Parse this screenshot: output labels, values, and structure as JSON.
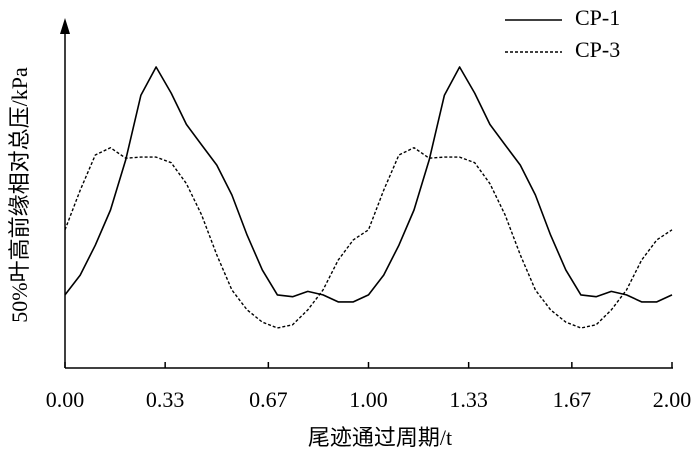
{
  "chart_data": {
    "type": "line",
    "y_label": "50%叶高前缘相对总压/kPa",
    "x_label": "尾迹通过周期/t",
    "x": [
      0,
      0.05,
      0.1,
      0.15,
      0.2,
      0.25,
      0.3,
      0.35,
      0.4,
      0.45,
      0.5,
      0.55,
      0.6,
      0.65,
      0.7,
      0.75,
      0.8,
      0.85,
      0.9,
      0.95,
      1.0,
      1.05,
      1.1,
      1.15,
      1.2,
      1.25,
      1.3,
      1.35,
      1.4,
      1.45,
      1.5,
      1.55,
      1.6,
      1.65,
      1.7,
      1.75,
      1.8,
      1.85,
      1.9,
      1.95,
      2.0
    ],
    "series": [
      {
        "name": "CP-1",
        "color": "#000000",
        "dash": "solid",
        "values": [
          21.0,
          26.7,
          35.3,
          45.4,
          59.8,
          78.4,
          86.5,
          79.0,
          70.0,
          64.1,
          58.3,
          49.7,
          38.2,
          28.2,
          21.0,
          20.5,
          22.0,
          21.0,
          19.0,
          19.0,
          21.0,
          26.7,
          35.3,
          45.4,
          59.8,
          78.4,
          86.5,
          79.0,
          70.0,
          64.1,
          58.3,
          49.7,
          38.2,
          28.2,
          21.0,
          20.5,
          22.0,
          21.0,
          19.0,
          19.0,
          21.0
        ]
      },
      {
        "name": "CP-3",
        "color": "#000000",
        "dash": "dashed",
        "values": [
          39.7,
          51.1,
          61.2,
          63.3,
          60.3,
          60.6,
          60.6,
          59.0,
          53.0,
          44.0,
          32.5,
          22.4,
          16.7,
          13.2,
          11.5,
          12.4,
          16.7,
          22.4,
          31.0,
          36.8,
          39.7,
          51.1,
          61.2,
          63.3,
          60.3,
          60.6,
          60.6,
          59.0,
          53.0,
          44.0,
          32.5,
          22.4,
          16.7,
          13.2,
          11.5,
          12.4,
          16.7,
          22.4,
          31.0,
          36.8,
          39.7
        ]
      }
    ],
    "xlim": [
      0,
      2
    ],
    "xticks": [
      {
        "value": 0,
        "label": "0.00"
      },
      0.33,
      0.67,
      {
        "value": 1,
        "label": "1.00"
      },
      1.33,
      1.67,
      {
        "value": 2,
        "label": "2.00"
      }
    ],
    "ylim": [
      0,
      100
    ],
    "legend": "upper right"
  }
}
